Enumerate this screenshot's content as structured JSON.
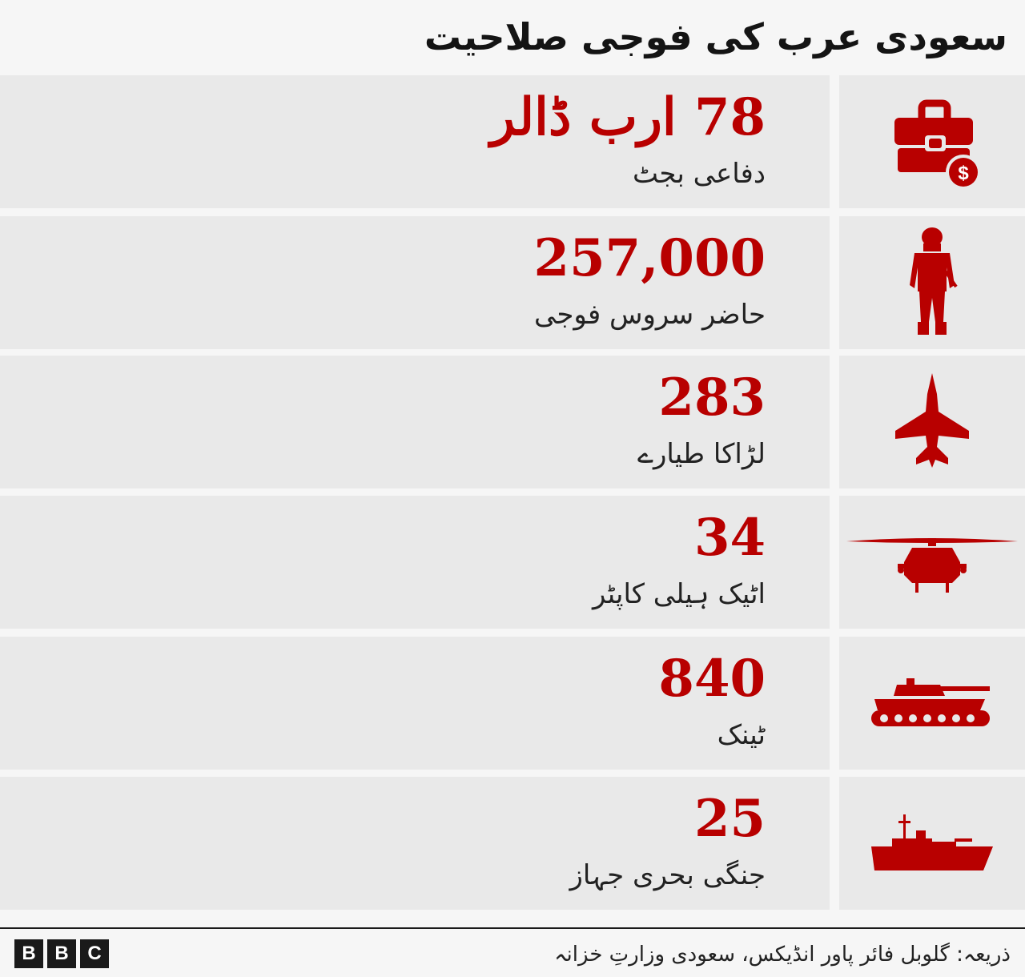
{
  "title": "سعودی عرب کی فوجی صلاحیت",
  "accent_color": "#b80000",
  "rows": [
    {
      "value": "78  ارب ڈالر",
      "label": "دفاعی بجٹ",
      "icon": "budget-briefcase-icon"
    },
    {
      "value": "257,000",
      "label": "حاضر سروس فوجی",
      "icon": "soldier-icon"
    },
    {
      "value": "283",
      "label": "لڑاکا طیارے",
      "icon": "fighter-jet-icon"
    },
    {
      "value": "34",
      "label": "اٹیک ہیلی کاپٹر",
      "icon": "helicopter-icon"
    },
    {
      "value": "840",
      "label": "ٹینک",
      "icon": "tank-icon"
    },
    {
      "value": "25",
      "label": "جنگی بحری جہاز",
      "icon": "warship-icon"
    }
  ],
  "chart_data": {
    "type": "table",
    "title": "سعودی عرب کی فوجی صلاحیت",
    "categories": [
      "دفاعی بجٹ",
      "حاضر سروس فوجی",
      "لڑاکا طیارے",
      "اٹیک ہیلی کاپٹر",
      "ٹینک",
      "جنگی بحری جہاز"
    ],
    "values": [
      78,
      257000,
      283,
      34,
      840,
      25
    ],
    "units": [
      "ارب ڈالر",
      "",
      "",
      "",
      "",
      ""
    ]
  },
  "footer": {
    "logo": [
      "B",
      "B",
      "C"
    ],
    "source": "ذریعہ: گلوبل فائر پاور انڈیکس، سعودی وزارتِ خزانہ"
  }
}
